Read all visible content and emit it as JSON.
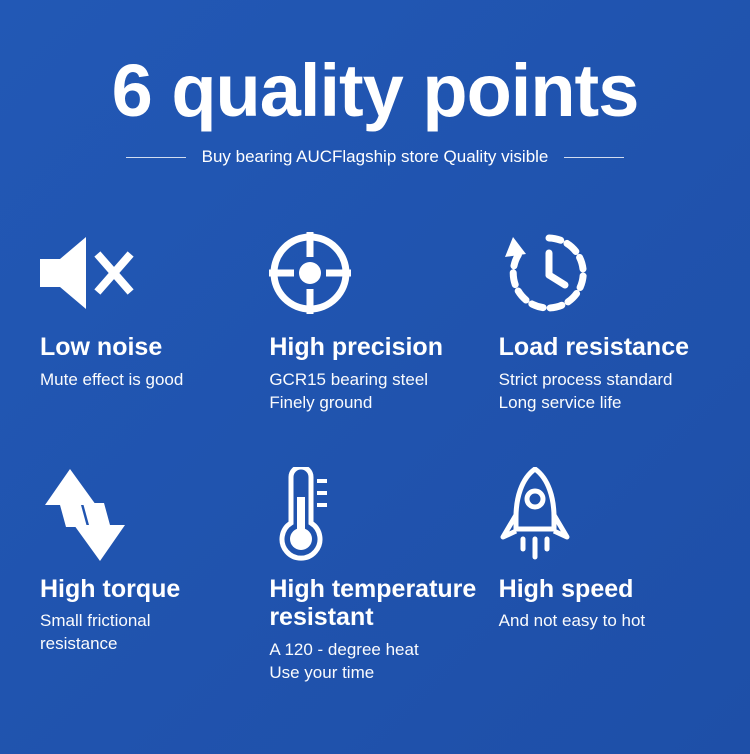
{
  "colors": {
    "bg_start": "#2258b5",
    "bg_end": "#1e4fa8",
    "fg": "#ffffff"
  },
  "title": "6 quality points",
  "subtitle": "Buy bearing AUCFlagship store Quality visible",
  "items": [
    {
      "icon": "mute-icon",
      "heading": "Low noise",
      "desc": "Mute effect is good"
    },
    {
      "icon": "crosshair-icon",
      "heading": "High precision",
      "desc": "GCR15 bearing steel\nFinely ground"
    },
    {
      "icon": "clock-back-icon",
      "heading": "Load resistance",
      "desc": "Strict process standard\nLong service life"
    },
    {
      "icon": "torque-arrows-icon",
      "heading": "High torque",
      "desc": "Small frictional\nresistance"
    },
    {
      "icon": "thermometer-icon",
      "heading": "High temperature resistant",
      "desc": "A 120 - degree heat\nUse your time"
    },
    {
      "icon": "rocket-icon",
      "heading": "High speed",
      "desc": "And not easy to hot"
    }
  ]
}
